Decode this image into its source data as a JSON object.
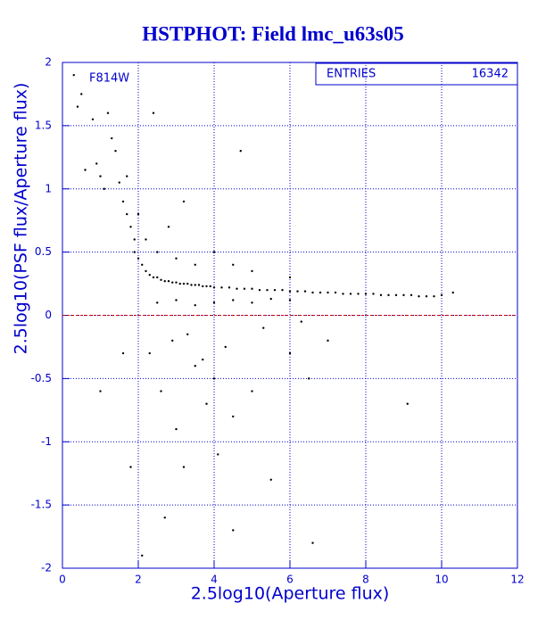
{
  "chart_data": {
    "type": "scatter",
    "title": "HSTPHOT: Field lmc_u63s05",
    "x_label": "2.5log10(Aperture flux)",
    "y_label": "2.5log10(PSF flux/Aperture flux)",
    "annotation": "F814W",
    "stats": {
      "label": "ENTRIES",
      "value": 16342
    },
    "xlim": [
      0,
      12
    ],
    "ylim": [
      -2,
      2
    ],
    "xticks": [
      0,
      2,
      4,
      6,
      8,
      10,
      12
    ],
    "yticks": [
      -2,
      -1.5,
      -1,
      -0.5,
      0,
      0.5,
      1,
      1.5,
      2
    ],
    "grid": true,
    "grid_color": "#0000cc",
    "reference_line": {
      "y": 0,
      "color": "#cc0000"
    },
    "color": "#000000",
    "x": [
      0.3,
      0.5,
      0.4,
      0.8,
      1.2,
      1.3,
      0.9,
      1.0,
      1.1,
      1.5,
      1.6,
      1.7,
      1.8,
      1.9,
      1.9,
      2.0,
      2.1,
      2.2,
      2.3,
      2.4,
      2.5,
      2.6,
      2.7,
      2.8,
      2.9,
      3.0,
      3.1,
      3.2,
      3.3,
      3.4,
      3.5,
      3.6,
      3.7,
      3.8,
      3.9,
      4.0,
      4.2,
      4.4,
      4.6,
      4.8,
      5.0,
      5.2,
      5.4,
      5.6,
      5.8,
      6.0,
      6.2,
      6.4,
      6.6,
      6.8,
      7.0,
      7.2,
      7.4,
      7.6,
      7.8,
      8.0,
      8.2,
      8.4,
      8.6,
      8.8,
      9.0,
      9.2,
      9.4,
      9.6,
      9.8,
      10.0,
      10.3,
      2.5,
      3.0,
      3.5,
      4.0,
      4.5,
      5.0,
      5.5,
      6.0,
      2.3,
      2.6,
      3.0,
      3.2,
      3.5,
      3.8,
      4.0,
      4.1,
      4.5,
      5.0,
      5.5,
      6.0,
      6.5,
      7.0,
      2.7,
      4.5,
      6.6,
      1.8,
      1.6,
      1.0,
      9.1,
      2.1,
      2.2,
      2.5,
      3.0,
      3.5,
      4.0,
      4.5,
      5.0,
      6.0,
      2.8,
      3.2,
      4.7,
      2.4,
      0.6,
      1.4,
      1.7,
      2.0,
      2.9,
      3.3,
      3.7,
      4.3,
      5.3,
      6.3
    ],
    "y": [
      1.9,
      1.75,
      1.65,
      1.55,
      1.6,
      1.4,
      1.2,
      1.1,
      1.0,
      1.05,
      0.9,
      0.8,
      0.7,
      0.6,
      0.5,
      0.45,
      0.4,
      0.35,
      0.32,
      0.3,
      0.3,
      0.28,
      0.27,
      0.27,
      0.26,
      0.26,
      0.25,
      0.25,
      0.25,
      0.24,
      0.24,
      0.24,
      0.23,
      0.23,
      0.23,
      0.22,
      0.22,
      0.22,
      0.21,
      0.21,
      0.21,
      0.2,
      0.2,
      0.2,
      0.2,
      0.19,
      0.19,
      0.19,
      0.18,
      0.18,
      0.18,
      0.18,
      0.17,
      0.17,
      0.17,
      0.17,
      0.17,
      0.16,
      0.16,
      0.16,
      0.16,
      0.16,
      0.15,
      0.15,
      0.15,
      0.16,
      0.18,
      0.1,
      0.12,
      0.08,
      0.1,
      0.12,
      0.1,
      0.13,
      0.12,
      -0.3,
      -0.6,
      -0.9,
      -1.2,
      -0.4,
      -0.7,
      -0.5,
      -1.1,
      -0.8,
      -0.6,
      -1.3,
      -0.3,
      -0.5,
      -0.2,
      -1.6,
      -1.7,
      -1.8,
      -1.2,
      -0.3,
      -0.6,
      -0.7,
      -1.9,
      0.6,
      0.5,
      0.45,
      0.4,
      0.5,
      0.4,
      0.35,
      0.3,
      0.7,
      0.9,
      1.3,
      1.6,
      1.15,
      1.3,
      1.1,
      0.8,
      -0.2,
      -0.15,
      -0.35,
      -0.25,
      -0.1,
      -0.05
    ]
  }
}
